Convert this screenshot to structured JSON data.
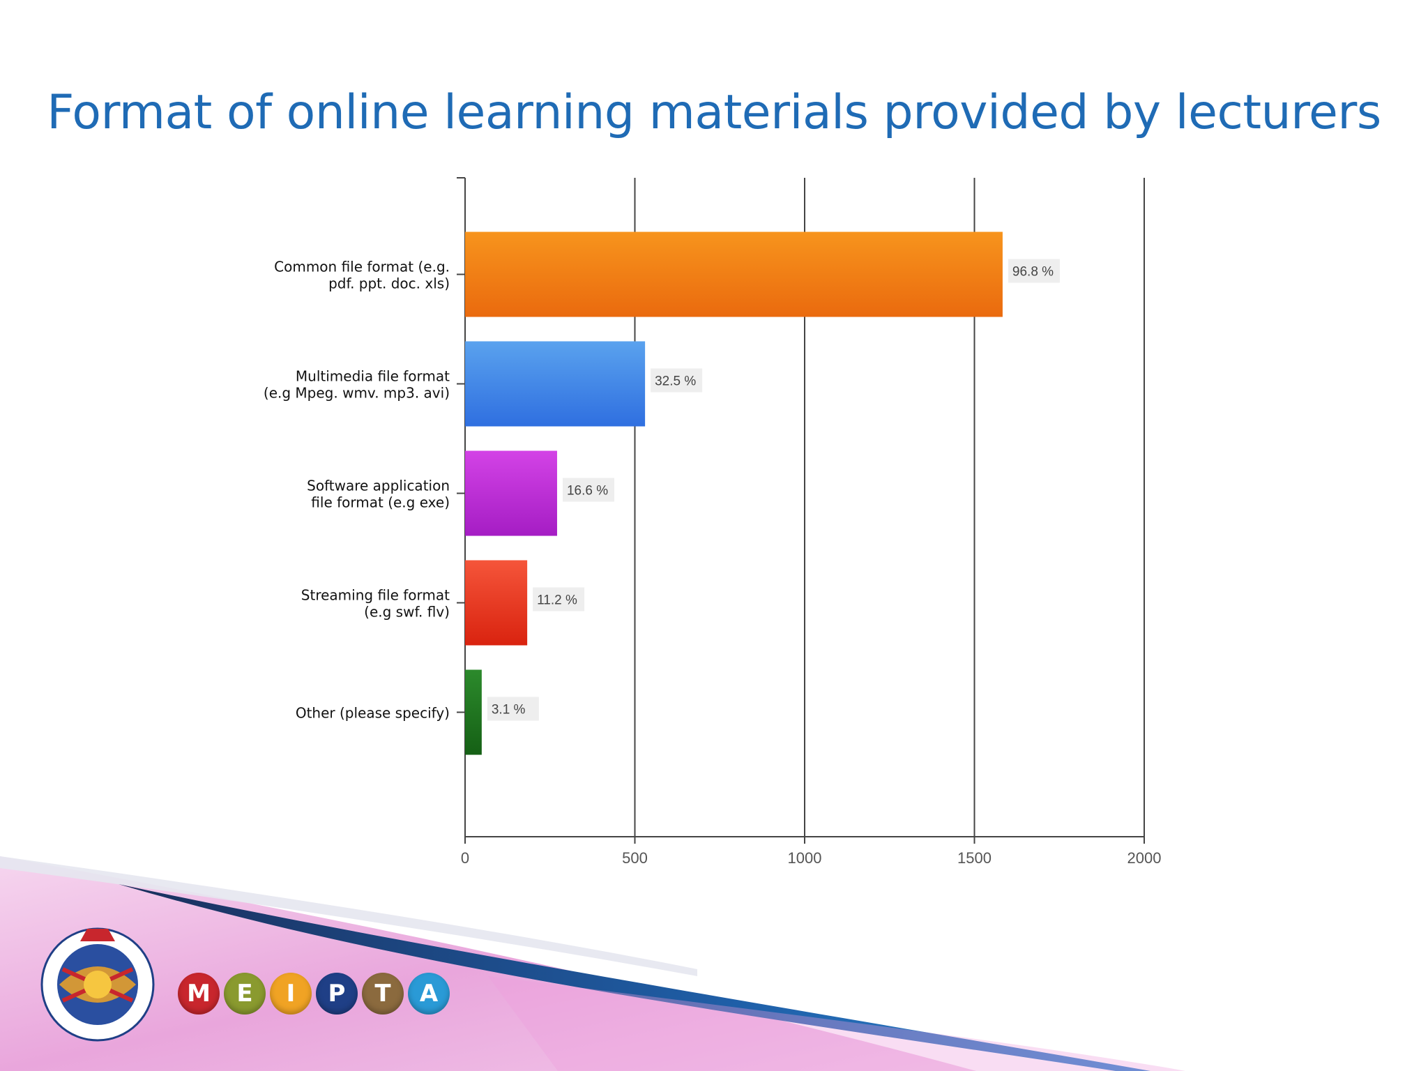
{
  "slide": {
    "title": "Format of online learning materials provided by lecturers"
  },
  "chart_data": {
    "type": "bar",
    "orientation": "horizontal",
    "title": "",
    "xlabel": "",
    "ylabel": "",
    "xlim": [
      0,
      2000
    ],
    "x_ticks": [
      "0",
      "500",
      "1000",
      "1500",
      "2000"
    ],
    "grid": true,
    "categories": [
      [
        "Common file format (e.g.",
        "pdf. ppt. doc. xls)"
      ],
      [
        "Multimedia file format",
        "(e.g Mpeg. wmv. mp3. avi)"
      ],
      [
        "Software application",
        "file format (e.g exe)"
      ],
      [
        "Streaming file format",
        "(e.g swf. flv)"
      ],
      [
        "Other (please specify)"
      ]
    ],
    "values": [
      1583,
      530,
      271,
      183,
      49
    ],
    "data_labels": [
      "96.8 %",
      "32.5 %",
      "16.6 %",
      "11.2 %",
      "3.1 %"
    ],
    "colors": [
      [
        "#f7941d",
        "#ea6a0e"
      ],
      [
        "#5aa2ee",
        "#2f6fe0"
      ],
      [
        "#d343e6",
        "#a51dc4"
      ],
      [
        "#f5553a",
        "#d9230f"
      ],
      [
        "#2c8a2c",
        "#156015"
      ]
    ]
  },
  "logo": {
    "letters": [
      "M",
      "E",
      "I",
      "P",
      "T",
      "A"
    ],
    "colors": [
      "#c8262d",
      "#8a9a2f",
      "#f0a324",
      "#1f3f86",
      "#8b6a3e",
      "#2a9ad6"
    ]
  },
  "theme": {
    "title_color": "#1f6bb5"
  }
}
